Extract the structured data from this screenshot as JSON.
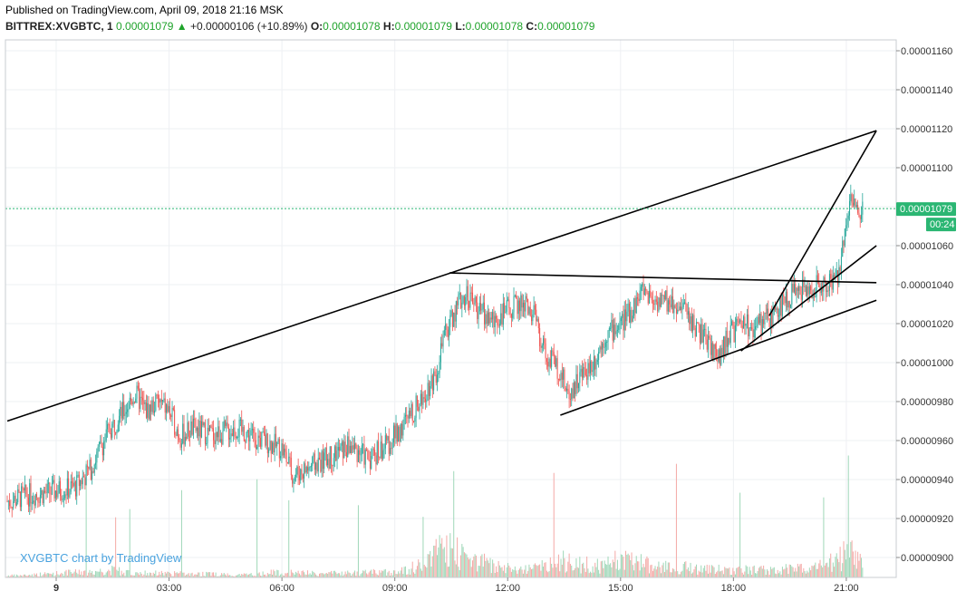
{
  "header": {
    "published": "Published on TradingView.com, April 09, 2018 21:16 MSK",
    "symbol": "BITTREX:XVGBTC, 1",
    "last": "0.00001079",
    "change_arrow": "▲",
    "change": "+0.00000106 (+10.89%)",
    "open_label": "O:",
    "open": "0.00001078",
    "high_label": "H:",
    "high": "0.00001079",
    "low_label": "L:",
    "low": "0.00001078",
    "close_label": "C:",
    "close": "0.00001079"
  },
  "colors": {
    "up": "#26a69a",
    "down": "#ef5350",
    "volume_up": "#9fd8b8",
    "volume_down": "#f4a9a6",
    "price_tag": "#2bb673",
    "trendline": "#000000",
    "grid": "#eef0f3",
    "watermark": "#4aa3df"
  },
  "chart_data": {
    "type": "candlestick",
    "symbol": "BITTREX:XVGBTC",
    "interval": "1",
    "x_ticks": [
      "9",
      "03:00",
      "06:00",
      "09:00",
      "12:00",
      "15:00",
      "18:00",
      "21:00"
    ],
    "x_range_hours": [
      0,
      21.5
    ],
    "y_ticks": [
      "0.00001160",
      "0.00001140",
      "0.00001120",
      "0.00001100",
      "0.00001080",
      "0.00001060",
      "0.00001040",
      "0.00001020",
      "0.00001000",
      "0.00000980",
      "0.00000960",
      "0.00000940",
      "0.00000920",
      "0.00000900"
    ],
    "ylim": [
      8.93e-06,
      1.166e-05
    ],
    "last_price_label": "0.00001079",
    "countdown_label": "00:24",
    "watermark": "XVGBTC chart by TradingView",
    "price_path": [
      [
        -1.2,
        9.29e-06
      ],
      [
        -0.8,
        9.32e-06
      ],
      [
        -0.3,
        9.33e-06
      ],
      [
        0.5,
        9.36e-06
      ],
      [
        0.9,
        9.45e-06
      ],
      [
        1.4,
        9.65e-06
      ],
      [
        1.8,
        9.75e-06
      ],
      [
        2.1,
        9.84e-06
      ],
      [
        2.4,
        9.75e-06
      ],
      [
        2.7,
        9.8e-06
      ],
      [
        3.0,
        9.75e-06
      ],
      [
        3.3,
        9.62e-06
      ],
      [
        3.6,
        9.66e-06
      ],
      [
        4.2,
        9.63e-06
      ],
      [
        4.8,
        9.66e-06
      ],
      [
        5.5,
        9.6e-06
      ],
      [
        6.0,
        9.56e-06
      ],
      [
        6.3,
        9.42e-06
      ],
      [
        6.8,
        9.47e-06
      ],
      [
        7.3,
        9.52e-06
      ],
      [
        7.8,
        9.57e-06
      ],
      [
        8.3,
        9.51e-06
      ],
      [
        8.8,
        9.58e-06
      ],
      [
        9.2,
        9.67e-06
      ],
      [
        9.5,
        9.75e-06
      ],
      [
        9.8,
        9.85e-06
      ],
      [
        10.1,
        9.95e-06
      ],
      [
        10.3,
        1.012e-05
      ],
      [
        10.6,
        1.027e-05
      ],
      [
        10.9,
        1.036e-05
      ],
      [
        11.2,
        1.028e-05
      ],
      [
        11.6,
        1.021e-05
      ],
      [
        12.0,
        1.027e-05
      ],
      [
        12.4,
        1.031e-05
      ],
      [
        12.7,
        1.024e-05
      ],
      [
        13.0,
        1.004e-05
      ],
      [
        13.4,
        9.96e-06
      ],
      [
        13.6,
        9.83e-06
      ],
      [
        13.9,
        9.92e-06
      ],
      [
        14.3,
        1.001e-05
      ],
      [
        14.6,
        1.014e-05
      ],
      [
        15.0,
        1.02e-05
      ],
      [
        15.3,
        1.027e-05
      ],
      [
        15.6,
        1.038e-05
      ],
      [
        15.9,
        1.032e-05
      ],
      [
        16.3,
        1.031e-05
      ],
      [
        16.7,
        1.027e-05
      ],
      [
        17.0,
        1.018e-05
      ],
      [
        17.4,
        1.008e-05
      ],
      [
        17.6,
        1.002e-05
      ],
      [
        17.9,
        1.015e-05
      ],
      [
        18.3,
        1.019e-05
      ],
      [
        18.6,
        1.018e-05
      ],
      [
        19.0,
        1.023e-05
      ],
      [
        19.4,
        1.033e-05
      ],
      [
        19.8,
        1.037e-05
      ],
      [
        20.2,
        1.039e-05
      ],
      [
        20.6,
        1.041e-05
      ],
      [
        20.8,
        1.044e-05
      ],
      [
        20.95,
        1.069e-05
      ],
      [
        21.05,
        1.079e-05
      ],
      [
        21.15,
        1.085e-05
      ],
      [
        21.3,
        1.076e-05
      ],
      [
        21.45,
        1.079e-05
      ]
    ],
    "volume_path": [
      [
        -1.0,
        2
      ],
      [
        1.5,
        8
      ],
      [
        2.0,
        5
      ],
      [
        3.5,
        4
      ],
      [
        5.0,
        3
      ],
      [
        6.0,
        6
      ],
      [
        7.0,
        4
      ],
      [
        8.0,
        5
      ],
      [
        9.0,
        6
      ],
      [
        9.6,
        12
      ],
      [
        10.0,
        22
      ],
      [
        10.3,
        40
      ],
      [
        10.6,
        28
      ],
      [
        11.0,
        20
      ],
      [
        11.5,
        14
      ],
      [
        12.0,
        10
      ],
      [
        12.5,
        8
      ],
      [
        13.5,
        18
      ],
      [
        14.0,
        14
      ],
      [
        14.5,
        12
      ],
      [
        15.0,
        20
      ],
      [
        15.6,
        16
      ],
      [
        16.0,
        12
      ],
      [
        17.0,
        10
      ],
      [
        18.0,
        8
      ],
      [
        19.0,
        8
      ],
      [
        20.0,
        10
      ],
      [
        20.8,
        18
      ],
      [
        21.0,
        30
      ],
      [
        21.2,
        24
      ],
      [
        21.45,
        12
      ]
    ],
    "trendlines": [
      {
        "from": [
          -1.3,
          9.7e-06
        ],
        "to": [
          21.8,
          1.119e-05
        ]
      },
      {
        "from": [
          10.45,
          1.046e-05
        ],
        "to": [
          21.8,
          1.041e-05
        ]
      },
      {
        "from": [
          13.4,
          9.73e-06
        ],
        "to": [
          21.8,
          1.032e-05
        ]
      },
      {
        "from": [
          18.2,
          1.006e-05
        ],
        "to": [
          21.8,
          1.06e-05
        ]
      },
      {
        "from": [
          18.95,
          1.024e-05
        ],
        "to": [
          21.8,
          1.119e-05
        ]
      }
    ]
  }
}
